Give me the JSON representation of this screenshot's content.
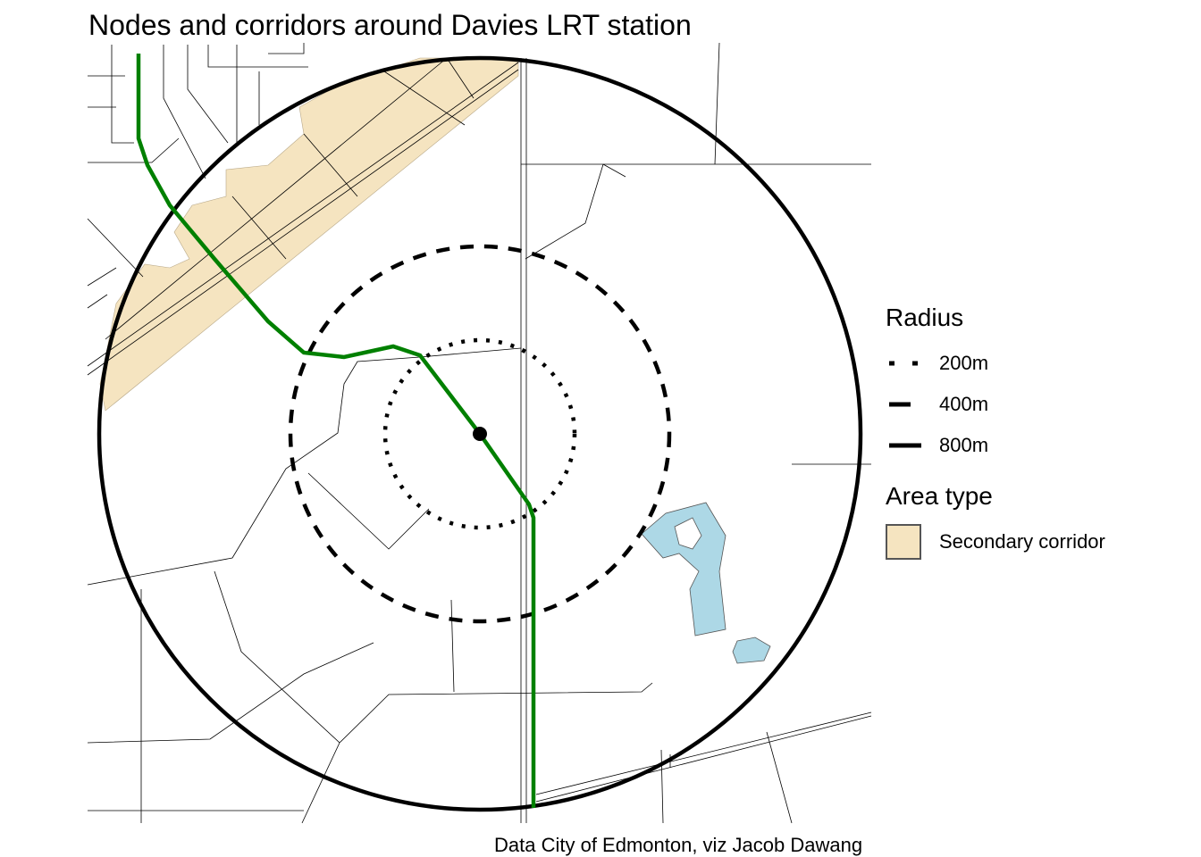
{
  "title": "Nodes and corridors around Davies LRT station",
  "caption": "Data City of Edmonton, viz Jacob Dawang",
  "legend": {
    "radius_title": "Radius",
    "radius_items": [
      {
        "label": "200m",
        "linetype": "dotted"
      },
      {
        "label": "400m",
        "linetype": "dashed"
      },
      {
        "label": "800m",
        "linetype": "solid"
      }
    ],
    "area_title": "Area type",
    "area_items": [
      {
        "label": "Secondary corridor",
        "color": "#F5E4C0"
      }
    ]
  },
  "colors": {
    "corridor": "#F5E4C0",
    "lrt_line": "#008000",
    "water": "#ADD8E6",
    "roads": "#000000",
    "buffers": "#000000"
  },
  "station": {
    "name_icon": "station-point"
  }
}
